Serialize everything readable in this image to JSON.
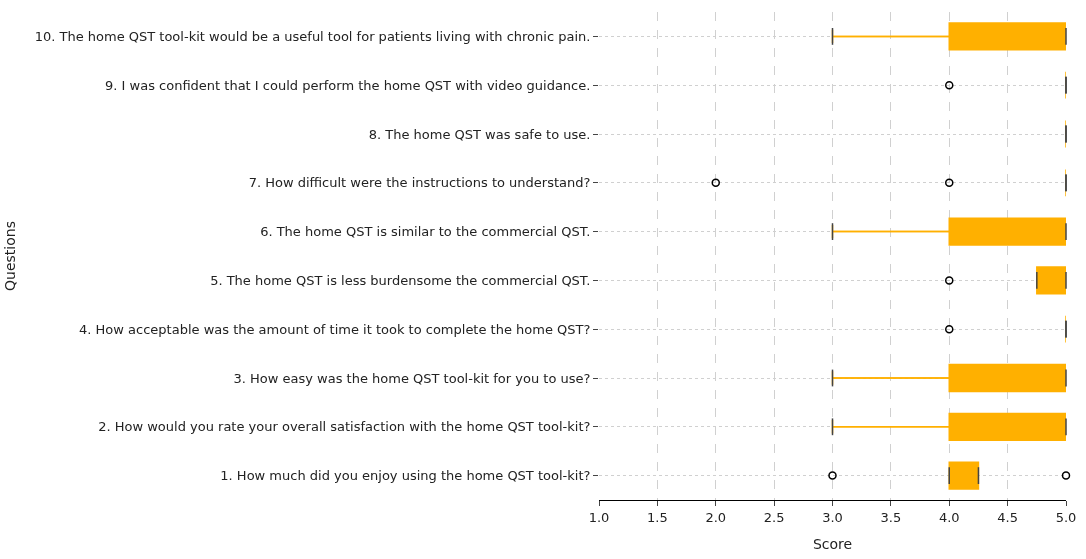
{
  "chart_data": {
    "type": "box",
    "orientation": "horizontal",
    "xlabel": "Score",
    "ylabel": "Questions",
    "categories": [
      "10. The home QST tool-kit would be a useful tool for patients living with chronic pain.",
      "9. I was confident that I could perform the home QST with video guidance.",
      "8. The home QST was safe to use.",
      "7. How difficult were the instructions to understand?",
      "6. The home QST is similar to the commercial QST.",
      "5. The home QST is less burdensome the commercial QST.",
      "4. How acceptable was the amount of time it took to complete the home QST?",
      "3. How easy was the home QST tool-kit for you to use?",
      "2. How would you rate your overall satisfaction with the home QST tool-kit?",
      "1. How much did you enjoy using the home QST tool-kit?"
    ],
    "boxes": [
      {
        "low": 3,
        "q1": 4,
        "median": 5,
        "q3": 5,
        "high": 5
      },
      {
        "low": 5,
        "q1": 5,
        "median": 5,
        "q3": 5,
        "high": 5,
        "outliers": [
          4
        ]
      },
      {
        "low": 5,
        "q1": 5,
        "median": 5,
        "q3": 5,
        "high": 5
      },
      {
        "low": 5,
        "q1": 5,
        "median": 5,
        "q3": 5,
        "high": 5,
        "outliers": [
          2,
          4
        ]
      },
      {
        "low": 3,
        "q1": 4,
        "median": 4,
        "q3": 5,
        "high": 5
      },
      {
        "low": 4.75,
        "q1": 4.75,
        "median": 5,
        "q3": 5,
        "high": 5,
        "outliers": [
          4
        ]
      },
      {
        "low": 5,
        "q1": 5,
        "median": 5,
        "q3": 5,
        "high": 5,
        "outliers": [
          4
        ]
      },
      {
        "low": 3,
        "q1": 4,
        "median": 5,
        "q3": 5,
        "high": 5
      },
      {
        "low": 3,
        "q1": 4,
        "median": 4,
        "q3": 5,
        "high": 5
      },
      {
        "low": 4,
        "q1": 4,
        "median": 4,
        "q3": 4.25,
        "high": 4.25,
        "outliers": [
          3,
          5
        ]
      }
    ],
    "color": "#ffb000",
    "xlim": [
      1,
      5
    ],
    "xticks": [
      {
        "value": 1,
        "label": "1.0"
      },
      {
        "value": 1.5,
        "label": "1.5"
      },
      {
        "value": 2,
        "label": "2.0"
      },
      {
        "value": 2.5,
        "label": "2.5"
      },
      {
        "value": 3,
        "label": "3.0"
      },
      {
        "value": 3.5,
        "label": "3.5"
      },
      {
        "value": 4,
        "label": "4.0"
      },
      {
        "value": 4.5,
        "label": "4.5"
      },
      {
        "value": 5,
        "label": "5.0"
      }
    ],
    "grid": true
  }
}
